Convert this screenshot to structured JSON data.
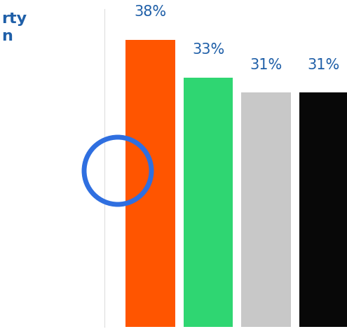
{
  "chart_data": {
    "type": "bar",
    "title": "rty\nn",
    "categories": [
      null,
      null,
      null,
      null
    ],
    "values": [
      38,
      33,
      31,
      31
    ],
    "value_labels": [
      "38%",
      "33%",
      "31%",
      "31%"
    ],
    "colors": [
      "#ff5500",
      "#2fd672",
      "#c8c8c8",
      "#080808"
    ],
    "ylim": [
      0,
      42
    ],
    "grid": false,
    "data_labels": true,
    "tick_labels": false
  }
}
